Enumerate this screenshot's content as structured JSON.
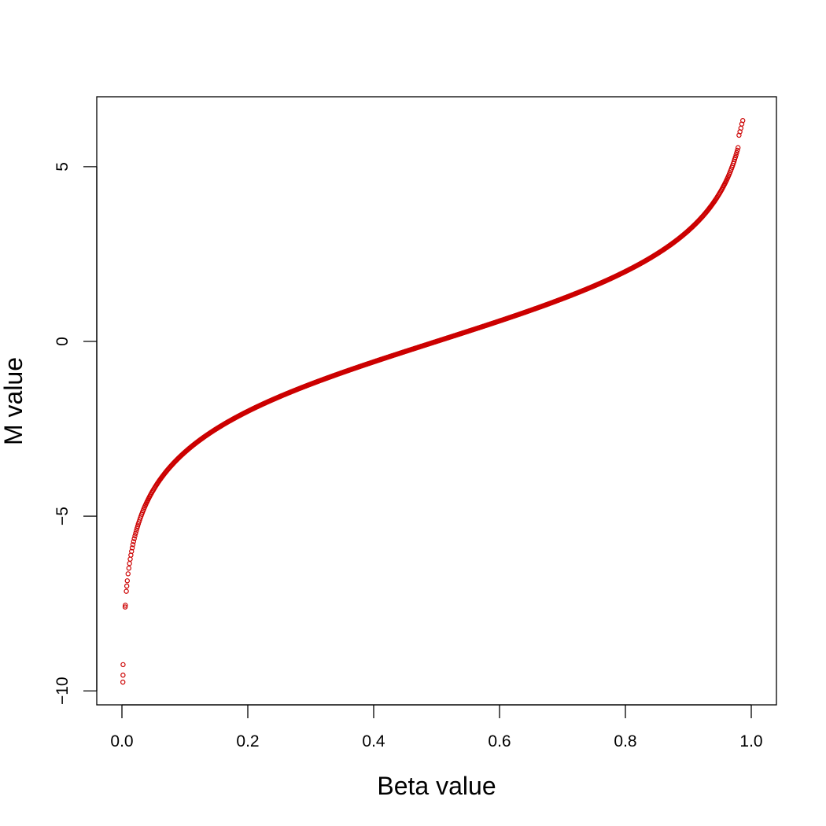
{
  "chart_data": {
    "type": "scatter",
    "title": "",
    "xlabel": "Beta value",
    "ylabel": "M value",
    "xlim": [
      -0.04,
      1.04
    ],
    "ylim": [
      -10.4,
      7.0
    ],
    "xticks": [
      0.0,
      0.2,
      0.4,
      0.6,
      0.8,
      1.0
    ],
    "xtick_labels": [
      "0.0",
      "0.2",
      "0.4",
      "0.6",
      "0.8",
      "1.0"
    ],
    "yticks": [
      -10,
      -5,
      0,
      5
    ],
    "ytick_labels": [
      "−10",
      "−5",
      "0",
      "5"
    ],
    "grid": false,
    "legend": "none",
    "marker": "open-circle",
    "color": "#cc0000",
    "relationship": "M = log2(Beta / (1 - Beta))",
    "beta_range": [
      0.011,
      0.979
    ],
    "outliers": [
      {
        "x": 0.0015,
        "y": -9.75
      },
      {
        "x": 0.0017,
        "y": -9.55
      },
      {
        "x": 0.0018,
        "y": -9.25
      },
      {
        "x": 0.0051,
        "y": -7.6
      },
      {
        "x": 0.0054,
        "y": -7.55
      },
      {
        "x": 0.007,
        "y": -7.15
      },
      {
        "x": 0.0077,
        "y": -7.0
      },
      {
        "x": 0.0085,
        "y": -6.85
      },
      {
        "x": 0.0097,
        "y": -6.65
      },
      {
        "x": 0.9805,
        "y": 5.9
      },
      {
        "x": 0.982,
        "y": 6.0
      },
      {
        "x": 0.9835,
        "y": 6.1
      },
      {
        "x": 0.985,
        "y": 6.22
      },
      {
        "x": 0.9865,
        "y": 6.32
      }
    ]
  }
}
